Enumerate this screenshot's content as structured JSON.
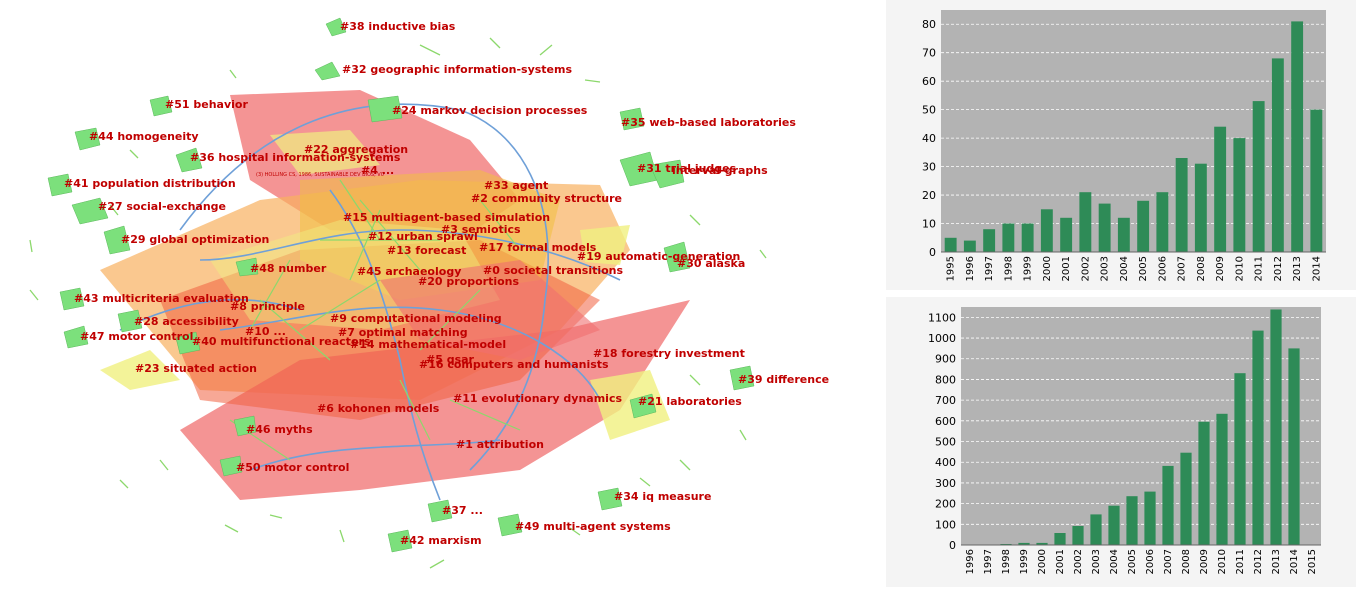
{
  "network": {
    "clusters": [
      {
        "id": "#0",
        "label": "societal transitions"
      },
      {
        "id": "#1",
        "label": "attribution"
      },
      {
        "id": "#2",
        "label": "community structure"
      },
      {
        "id": "#3",
        "label": "semiotics"
      },
      {
        "id": "#4",
        "label": "..."
      },
      {
        "id": "#5",
        "label": "qsar"
      },
      {
        "id": "#6",
        "label": "kohonen models"
      },
      {
        "id": "#7",
        "label": "optimal matching"
      },
      {
        "id": "#8",
        "label": "principle"
      },
      {
        "id": "#9",
        "label": "computational modeling"
      },
      {
        "id": "#10",
        "label": "..."
      },
      {
        "id": "#11",
        "label": "evolutionary dynamics"
      },
      {
        "id": "#12",
        "label": "urban sprawl"
      },
      {
        "id": "#13",
        "label": "forecast"
      },
      {
        "id": "#14",
        "label": "mathematical-model"
      },
      {
        "id": "#15",
        "label": "multiagent-based simulation"
      },
      {
        "id": "#16",
        "label": "computers and humanists"
      },
      {
        "id": "#17",
        "label": "formal models"
      },
      {
        "id": "#18",
        "label": "forestry investment"
      },
      {
        "id": "#19",
        "label": "automatic-generation"
      },
      {
        "id": "#20",
        "label": "proportions"
      },
      {
        "id": "#21",
        "label": "laboratories"
      },
      {
        "id": "#22",
        "label": "aggregation"
      },
      {
        "id": "#23",
        "label": "situated action"
      },
      {
        "id": "#24",
        "label": "markov decision processes"
      },
      {
        "id": "#27",
        "label": "social-exchange"
      },
      {
        "id": "#28",
        "label": "accessibility"
      },
      {
        "id": "#29",
        "label": "global optimization"
      },
      {
        "id": "#30",
        "label": "alaska"
      },
      {
        "id": "#31",
        "label": "trial judges"
      },
      {
        "id": "#32",
        "label": "geographic information-systems"
      },
      {
        "id": "#33",
        "label": "agent"
      },
      {
        "id": "#34",
        "label": "iq measure"
      },
      {
        "id": "#35",
        "label": "web-based laboratories"
      },
      {
        "id": "#36",
        "label": "hospital information-systems"
      },
      {
        "id": "#37",
        "label": "..."
      },
      {
        "id": "#38",
        "label": "inductive bias"
      },
      {
        "id": "#39",
        "label": "difference"
      },
      {
        "id": "#40",
        "label": "multifunctional reactors"
      },
      {
        "id": "#41",
        "label": "population distribution"
      },
      {
        "id": "#42",
        "label": "marxism"
      },
      {
        "id": "#43",
        "label": "multicriteria evaluation"
      },
      {
        "id": "#44",
        "label": "homogeneity"
      },
      {
        "id": "#45",
        "label": "archaeology"
      },
      {
        "id": "#46",
        "label": "myths"
      },
      {
        "id": "#47",
        "label": "motor control"
      },
      {
        "id": "#48",
        "label": "number"
      },
      {
        "id": "#49",
        "label": "multi-agent systems"
      },
      {
        "id": "#50",
        "label": "motor control"
      },
      {
        "id": "#51",
        "label": "behavior"
      },
      {
        "id": "",
        "label": "interval-graphs"
      }
    ],
    "citation_label": "(3) HOLLING CS, 1986, SUSTAINABLE DEV BIOS, V0"
  },
  "colors": {
    "bar": "#2e8b57",
    "plot_bg": "#b3b3b3",
    "cluster_label": "#c00000",
    "hull_red": "#f07070",
    "hull_orange": "#f8b060",
    "hull_yellow": "#f0f080",
    "node_green": "#7ce07c",
    "edge_blue": "#6fa0d8"
  },
  "chart_data": [
    {
      "type": "bar",
      "categories": [
        "1995",
        "1996",
        "1997",
        "1998",
        "1999",
        "2000",
        "2001",
        "2002",
        "2003",
        "2004",
        "2005",
        "2006",
        "2007",
        "2008",
        "2009",
        "2010",
        "2011",
        "2012",
        "2013",
        "2014"
      ],
      "values": [
        5,
        4,
        8,
        10,
        10,
        15,
        12,
        21,
        17,
        12,
        18,
        21,
        33,
        31,
        44,
        40,
        53,
        68,
        81,
        50
      ],
      "ylim": [
        0,
        85
      ],
      "yticks": [
        0,
        10,
        20,
        30,
        40,
        50,
        60,
        70,
        80
      ],
      "grid": true
    },
    {
      "type": "bar",
      "categories": [
        "1996",
        "1997",
        "1998",
        "1999",
        "2000",
        "2001",
        "2002",
        "2003",
        "2004",
        "2005",
        "2006",
        "2007",
        "2008",
        "2009",
        "2010",
        "2011",
        "2012",
        "2013",
        "2014",
        "2015"
      ],
      "values": [
        0,
        0,
        5,
        10,
        10,
        58,
        92,
        148,
        190,
        236,
        258,
        382,
        446,
        596,
        634,
        830,
        1036,
        1138,
        950,
        0
      ],
      "ylim": [
        0,
        1150
      ],
      "yticks": [
        0,
        100,
        200,
        300,
        400,
        500,
        600,
        700,
        800,
        900,
        1000,
        1100
      ],
      "grid": true
    }
  ]
}
